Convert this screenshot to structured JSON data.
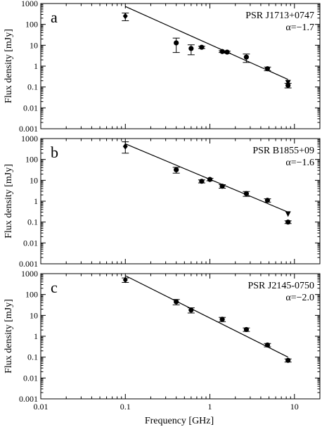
{
  "figure": {
    "xlabel": "Frequency [GHz]",
    "ylabel": "Flux density [mJy]"
  },
  "chart_data": [
    {
      "type": "scatter",
      "panel_letter": "a",
      "title": "PSR J1713+0747",
      "spectral_index": "α=−1.7",
      "xlabel": "",
      "ylabel": "Flux density [mJy]",
      "xscale": "log",
      "yscale": "log",
      "xlim": [
        0.01,
        20
      ],
      "ylim": [
        0.001,
        1000
      ],
      "x_ticks": [],
      "y_ticks": [
        "0.001",
        "0.01",
        "0.1",
        "1",
        "10",
        "100",
        "1000"
      ],
      "points": [
        {
          "x": 0.1,
          "y": 250,
          "err_lo": 150,
          "err_hi": 350,
          "marker": "diamond"
        },
        {
          "x": 0.4,
          "y": 13,
          "err_lo": 4.5,
          "err_hi": 22,
          "marker": "circle"
        },
        {
          "x": 0.6,
          "y": 7,
          "err_lo": 3.5,
          "err_hi": 10.5,
          "marker": "circle"
        },
        {
          "x": 0.8,
          "y": 8,
          "err_lo": 7,
          "err_hi": 9,
          "marker": "circle"
        },
        {
          "x": 1.4,
          "y": 5,
          "err_lo": 4.5,
          "err_hi": 5.5,
          "marker": "circle"
        },
        {
          "x": 1.6,
          "y": 4.7,
          "err_lo": 4.2,
          "err_hi": 5.2,
          "marker": "circle"
        },
        {
          "x": 2.7,
          "y": 2.7,
          "err_lo": 1.5,
          "err_hi": 3.8,
          "marker": "circle"
        },
        {
          "x": 4.8,
          "y": 0.75,
          "err_lo": 0.6,
          "err_hi": 0.9,
          "marker": "circle"
        },
        {
          "x": 8.4,
          "y": 0.16,
          "err_lo": null,
          "err_hi": null,
          "marker": "triangle-down"
        },
        {
          "x": 8.4,
          "y": 0.12,
          "err_lo": 0.09,
          "err_hi": 0.15,
          "marker": "circle"
        }
      ],
      "fit": {
        "x": [
          0.1,
          8.4
        ],
        "y": [
          720,
          0.23
        ]
      },
      "grid": false
    },
    {
      "type": "scatter",
      "panel_letter": "b",
      "title": "PSR B1855+09",
      "spectral_index": "α=−1.6",
      "xlabel": "",
      "ylabel": "Flux density [mJy]",
      "xscale": "log",
      "yscale": "log",
      "xlim": [
        0.01,
        20
      ],
      "ylim": [
        0.001,
        1000
      ],
      "x_ticks": [],
      "y_ticks": [
        "0.001",
        "0.01",
        "0.1",
        "1",
        "10",
        "100",
        "1000"
      ],
      "points": [
        {
          "x": 0.1,
          "y": 420,
          "err_lo": 200,
          "err_hi": 700,
          "marker": "diamond"
        },
        {
          "x": 0.4,
          "y": 32,
          "err_lo": 22,
          "err_hi": 42,
          "marker": "circle"
        },
        {
          "x": 0.8,
          "y": 9,
          "err_lo": 7.5,
          "err_hi": 10.5,
          "marker": "circle"
        },
        {
          "x": 1.0,
          "y": 11,
          "err_lo": 9.5,
          "err_hi": 12.5,
          "marker": "circle"
        },
        {
          "x": 1.4,
          "y": 5.2,
          "err_lo": 4.2,
          "err_hi": 6.2,
          "marker": "circle"
        },
        {
          "x": 2.7,
          "y": 2.3,
          "err_lo": 1.7,
          "err_hi": 2.9,
          "marker": "circle"
        },
        {
          "x": 4.8,
          "y": 1.1,
          "err_lo": 0.9,
          "err_hi": 1.3,
          "marker": "circle"
        },
        {
          "x": 8.4,
          "y": 0.24,
          "err_lo": null,
          "err_hi": null,
          "marker": "triangle-down"
        },
        {
          "x": 8.4,
          "y": 0.1,
          "err_lo": 0.085,
          "err_hi": 0.115,
          "marker": "circle"
        }
      ],
      "fit": {
        "x": [
          0.1,
          8.4
        ],
        "y": [
          560,
          0.3
        ]
      },
      "grid": false
    },
    {
      "type": "scatter",
      "panel_letter": "c",
      "title": "PSR J2145-0750",
      "spectral_index": "α=−2.0",
      "xlabel": "Frequency [GHz]",
      "ylabel": "Flux density [mJy]",
      "xscale": "log",
      "yscale": "log",
      "xlim": [
        0.01,
        20
      ],
      "ylim": [
        0.001,
        1000
      ],
      "x_ticks": [
        "0.01",
        "0.1",
        "1",
        "10"
      ],
      "y_ticks": [
        "0.001",
        "0.01",
        "0.1",
        "1",
        "10",
        "100",
        "1000"
      ],
      "points": [
        {
          "x": 0.1,
          "y": 500,
          "err_lo": 380,
          "err_hi": 620,
          "marker": "diamond"
        },
        {
          "x": 0.4,
          "y": 45,
          "err_lo": 32,
          "err_hi": 58,
          "marker": "circle"
        },
        {
          "x": 0.6,
          "y": 18,
          "err_lo": 13,
          "err_hi": 23,
          "marker": "circle"
        },
        {
          "x": 1.4,
          "y": 6.5,
          "err_lo": 5,
          "err_hi": 8,
          "marker": "circle"
        },
        {
          "x": 2.7,
          "y": 2.1,
          "err_lo": 1.7,
          "err_hi": 2.5,
          "marker": "circle"
        },
        {
          "x": 4.8,
          "y": 0.38,
          "err_lo": 0.31,
          "err_hi": 0.45,
          "marker": "circle"
        },
        {
          "x": 8.4,
          "y": 0.07,
          "err_lo": 0.058,
          "err_hi": 0.082,
          "marker": "circle"
        }
      ],
      "fit": {
        "x": [
          0.1,
          8.4
        ],
        "y": [
          800,
          0.1
        ]
      },
      "grid": false
    }
  ]
}
